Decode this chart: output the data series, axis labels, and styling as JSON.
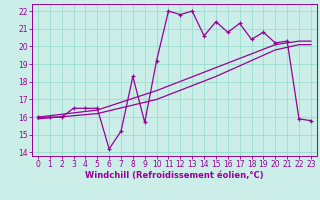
{
  "xlabel": "Windchill (Refroidissement éolien,°C)",
  "bg_color": "#cceee8",
  "grid_color": "#99ddcc",
  "line_color": "#990099",
  "xlim": [
    -0.5,
    23.5
  ],
  "ylim": [
    13.8,
    22.4
  ],
  "yticks": [
    14,
    15,
    16,
    17,
    18,
    19,
    20,
    21,
    22
  ],
  "xticks": [
    0,
    1,
    2,
    3,
    4,
    5,
    6,
    7,
    8,
    9,
    10,
    11,
    12,
    13,
    14,
    15,
    16,
    17,
    18,
    19,
    20,
    21,
    22,
    23
  ],
  "series1_x": [
    0,
    1,
    2,
    3,
    4,
    5,
    6,
    7,
    8,
    9,
    10,
    11,
    12,
    13,
    14,
    15,
    16,
    17,
    18,
    19,
    20,
    21,
    22,
    23
  ],
  "series1_y": [
    16.0,
    16.0,
    16.0,
    16.5,
    16.5,
    16.5,
    14.2,
    15.2,
    18.3,
    15.7,
    19.2,
    22.0,
    21.8,
    22.0,
    20.6,
    21.4,
    20.8,
    21.3,
    20.4,
    20.8,
    20.2,
    20.3,
    15.9,
    15.8
  ],
  "series2_x": [
    0,
    5,
    10,
    15,
    20,
    22,
    23
  ],
  "series2_y": [
    16.0,
    16.4,
    17.5,
    18.8,
    20.1,
    20.3,
    20.3
  ],
  "series3_x": [
    0,
    5,
    10,
    15,
    20,
    22,
    23
  ],
  "series3_y": [
    15.9,
    16.2,
    17.0,
    18.3,
    19.8,
    20.1,
    20.1
  ],
  "tick_fontsize": 5.5,
  "xlabel_fontsize": 6.0
}
